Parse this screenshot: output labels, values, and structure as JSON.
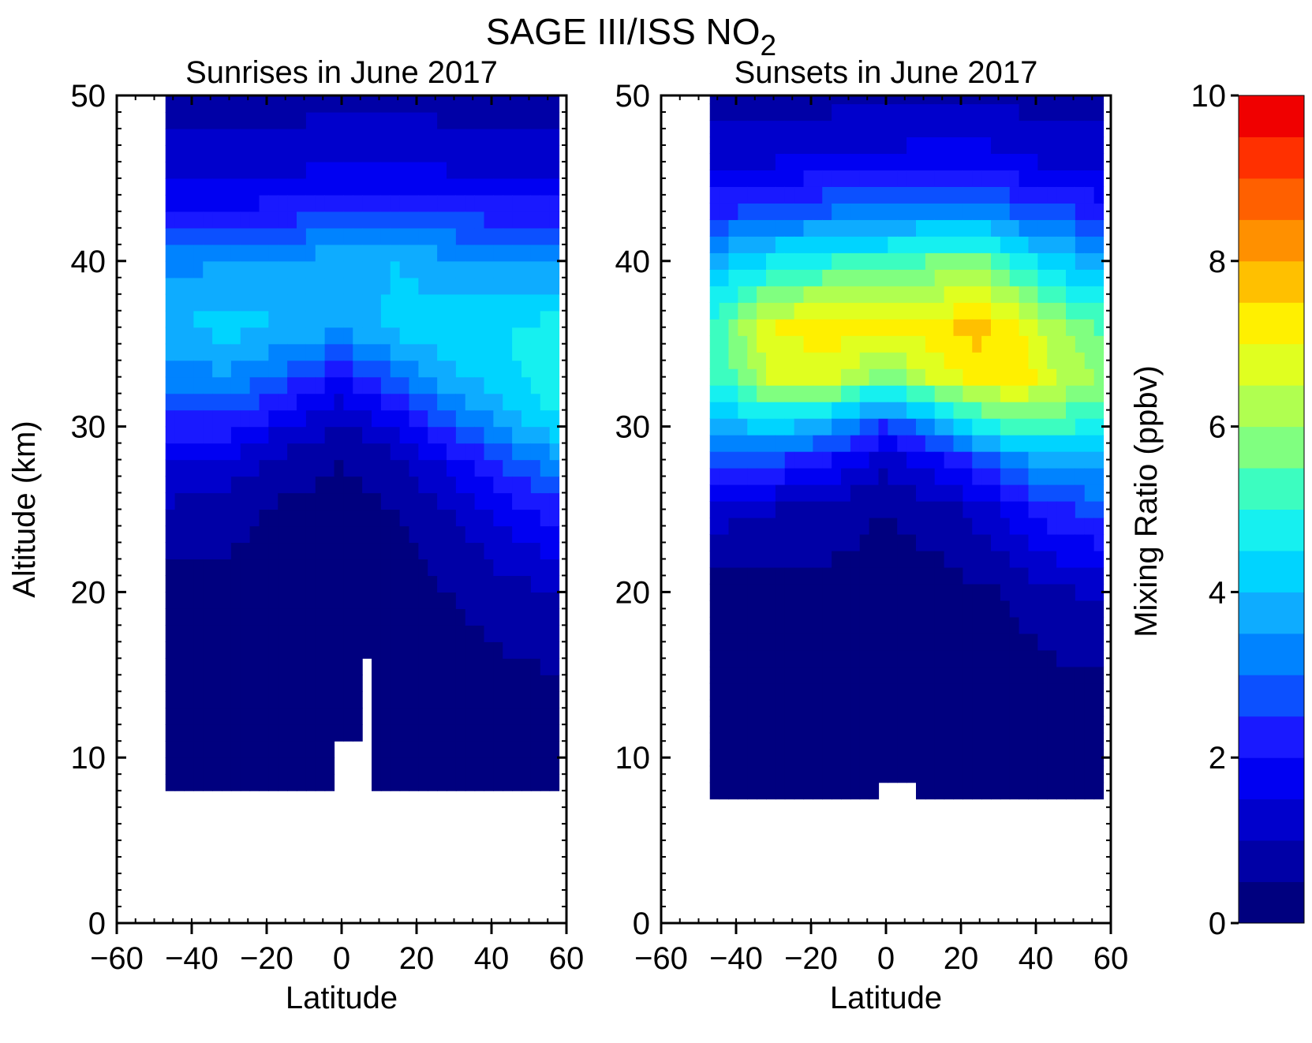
{
  "figure": {
    "title_main": "SAGE III/ISS NO",
    "title_subscript": "2"
  },
  "colorbar": {
    "label": "Mixing Ratio (ppbv)",
    "min": 0,
    "max": 10,
    "step": 0.5,
    "tick_values": [
      0,
      2,
      4,
      6,
      8,
      10
    ],
    "tick_labels": [
      "0",
      "2",
      "4",
      "6",
      "8",
      "10"
    ],
    "colors": [
      "#00007f",
      "#0000a6",
      "#0000cc",
      "#0000f2",
      "#1919ff",
      "#0c50ff",
      "#0083ff",
      "#0eacff",
      "#00d4ff",
      "#16f0f0",
      "#3cfdc0",
      "#80ff80",
      "#b0ff50",
      "#e0ff20",
      "#fff000",
      "#ffc000",
      "#ff9000",
      "#ff6000",
      "#ff3000",
      "#f00000",
      "#b00000"
    ]
  },
  "chart_data": [
    {
      "type": "heatmap",
      "title": "Sunrises in June 2017",
      "xlabel": "Latitude",
      "ylabel": "Altitude (km)",
      "xlim": [
        -60,
        60
      ],
      "ylim": [
        0,
        50
      ],
      "x_ticks": [
        -60,
        -40,
        -20,
        0,
        20,
        40,
        60
      ],
      "x_tick_labels": [
        "−60",
        "−40",
        "−20",
        "0",
        "20",
        "40",
        "60"
      ],
      "y_ticks": [
        0,
        10,
        20,
        30,
        40,
        50
      ],
      "y_tick_labels": [
        "0",
        "10",
        "20",
        "30",
        "40",
        "50"
      ],
      "colorbar_label": "Mixing Ratio (ppbv)",
      "value_range": [
        0,
        10
      ],
      "grid": false,
      "data_extent": {
        "lat_range": [
          -47,
          58
        ],
        "alt_range": [
          8,
          50
        ]
      },
      "gaps": [
        {
          "lat_range": [
            -1,
            9
          ],
          "alt_max": 11
        },
        {
          "lat_range": [
            5,
            7
          ],
          "alt_max": 16
        }
      ],
      "profiles": [
        {
          "lat": -45,
          "alt": [
            8,
            10,
            15,
            20,
            25,
            28,
            30,
            33,
            36,
            40,
            43,
            46,
            50
          ],
          "value": [
            0.2,
            0.2,
            0.2,
            0.3,
            0.9,
            1.5,
            2.3,
            3.3,
            4.0,
            3.3,
            2.0,
            1.2,
            0.8
          ]
        },
        {
          "lat": -30,
          "alt": [
            8,
            10,
            15,
            20,
            25,
            28,
            30,
            33,
            36,
            40,
            43,
            46,
            50
          ],
          "value": [
            0.2,
            0.2,
            0.2,
            0.3,
            0.7,
            1.4,
            2.3,
            3.4,
            4.2,
            3.5,
            2.1,
            1.2,
            0.8
          ]
        },
        {
          "lat": -15,
          "alt": [
            8,
            10,
            15,
            20,
            25,
            28,
            30,
            33,
            36,
            40,
            43,
            46,
            50
          ],
          "value": [
            0.2,
            0.2,
            0.2,
            0.2,
            0.4,
            0.8,
            1.5,
            2.8,
            4.0,
            3.6,
            2.2,
            1.3,
            0.8
          ]
        },
        {
          "lat": 0,
          "alt": [
            8,
            10,
            15,
            20,
            25,
            28,
            30,
            33,
            36,
            40,
            43,
            46,
            50
          ],
          "value": [
            0.2,
            0.2,
            0.2,
            0.2,
            0.3,
            0.5,
            0.9,
            2.0,
            3.6,
            3.8,
            2.5,
            1.4,
            0.8
          ]
        },
        {
          "lat": 15,
          "alt": [
            8,
            10,
            15,
            20,
            25,
            28,
            30,
            33,
            36,
            40,
            43,
            46,
            50
          ],
          "value": [
            0.2,
            0.2,
            0.2,
            0.3,
            0.5,
            0.9,
            1.6,
            3.0,
            4.2,
            4.0,
            2.6,
            1.4,
            0.8
          ]
        },
        {
          "lat": 30,
          "alt": [
            8,
            10,
            15,
            20,
            25,
            28,
            30,
            33,
            36,
            40,
            43,
            46,
            50
          ],
          "value": [
            0.2,
            0.2,
            0.3,
            0.5,
            1.0,
            1.8,
            2.8,
            3.9,
            4.4,
            3.6,
            2.4,
            1.3,
            0.8
          ]
        },
        {
          "lat": 45,
          "alt": [
            8,
            10,
            15,
            20,
            25,
            28,
            30,
            33,
            36,
            40,
            43,
            46,
            50
          ],
          "value": [
            0.2,
            0.2,
            0.4,
            0.8,
            1.8,
            2.8,
            3.7,
            4.4,
            4.5,
            3.4,
            2.2,
            1.2,
            0.8
          ]
        },
        {
          "lat": 58,
          "alt": [
            8,
            10,
            15,
            20,
            25,
            28,
            30,
            33,
            36,
            40,
            43,
            46,
            50
          ],
          "value": [
            0.3,
            0.3,
            0.5,
            1.0,
            2.3,
            3.4,
            4.4,
            5.0,
            4.8,
            3.4,
            2.2,
            1.2,
            0.8
          ]
        }
      ]
    },
    {
      "type": "heatmap",
      "title": "Sunsets in June 2017",
      "xlabel": "Latitude",
      "ylabel": "",
      "xlim": [
        -60,
        60
      ],
      "ylim": [
        0,
        50
      ],
      "x_ticks": [
        -60,
        -40,
        -20,
        0,
        20,
        40,
        60
      ],
      "x_tick_labels": [
        "−60",
        "−40",
        "−20",
        "0",
        "20",
        "40",
        "60"
      ],
      "y_ticks": [
        0,
        10,
        20,
        30,
        40,
        50
      ],
      "y_tick_labels": [
        "0",
        "10",
        "20",
        "30",
        "40",
        "50"
      ],
      "colorbar_label": "Mixing Ratio (ppbv)",
      "value_range": [
        0,
        10
      ],
      "grid": false,
      "data_extent": {
        "lat_range": [
          -47,
          58
        ],
        "alt_range": [
          7.5,
          50
        ]
      },
      "gaps": [
        {
          "lat_range": [
            -3,
            9
          ],
          "alt_max": 9
        }
      ],
      "profiles": [
        {
          "lat": -45,
          "alt": [
            8,
            10,
            15,
            20,
            25,
            28,
            30,
            33,
            36,
            40,
            43,
            46,
            50
          ],
          "value": [
            0.2,
            0.2,
            0.2,
            0.3,
            1.2,
            2.6,
            3.8,
            5.0,
            5.3,
            3.9,
            2.4,
            1.4,
            0.8
          ]
        },
        {
          "lat": -30,
          "alt": [
            8,
            10,
            15,
            20,
            25,
            28,
            30,
            33,
            36,
            40,
            43,
            46,
            50
          ],
          "value": [
            0.2,
            0.2,
            0.2,
            0.3,
            1.0,
            2.6,
            4.2,
            6.6,
            7.0,
            4.6,
            2.7,
            1.5,
            0.8
          ]
        },
        {
          "lat": -15,
          "alt": [
            8,
            10,
            15,
            20,
            25,
            28,
            30,
            33,
            36,
            40,
            43,
            46,
            50
          ],
          "value": [
            0.2,
            0.2,
            0.2,
            0.3,
            0.8,
            2.0,
            3.6,
            6.7,
            7.3,
            5.0,
            3.0,
            1.6,
            0.8
          ]
        },
        {
          "lat": 0,
          "alt": [
            8,
            10,
            15,
            20,
            25,
            28,
            30,
            33,
            36,
            40,
            43,
            46,
            50
          ],
          "value": [
            0.2,
            0.2,
            0.2,
            0.2,
            0.5,
            1.2,
            2.4,
            5.6,
            7.1,
            5.2,
            3.1,
            1.7,
            0.8
          ]
        },
        {
          "lat": 15,
          "alt": [
            8,
            10,
            15,
            20,
            25,
            28,
            30,
            33,
            36,
            40,
            43,
            46,
            50
          ],
          "value": [
            0.2,
            0.2,
            0.2,
            0.3,
            0.8,
            1.9,
            3.6,
            6.8,
            7.4,
            5.6,
            3.4,
            1.8,
            0.8
          ]
        },
        {
          "lat": 25,
          "alt": [
            8,
            10,
            15,
            20,
            25,
            28,
            30,
            33,
            36,
            40,
            43,
            46,
            50
          ],
          "value": [
            0.2,
            0.2,
            0.2,
            0.4,
            1.2,
            2.6,
            4.6,
            7.2,
            7.7,
            5.7,
            3.3,
            1.8,
            0.8
          ]
        },
        {
          "lat": 35,
          "alt": [
            8,
            10,
            15,
            20,
            25,
            28,
            30,
            33,
            36,
            40,
            43,
            46,
            50
          ],
          "value": [
            0.2,
            0.2,
            0.3,
            0.6,
            1.9,
            3.4,
            5.2,
            7.3,
            7.1,
            4.8,
            2.9,
            1.6,
            0.8
          ]
        },
        {
          "lat": 45,
          "alt": [
            8,
            10,
            15,
            20,
            25,
            28,
            30,
            33,
            36,
            40,
            43,
            46,
            50
          ],
          "value": [
            0.2,
            0.2,
            0.4,
            0.9,
            2.4,
            3.8,
            5.1,
            6.6,
            6.1,
            4.2,
            2.6,
            1.4,
            0.8
          ]
        },
        {
          "lat": 58,
          "alt": [
            8,
            10,
            15,
            20,
            25,
            28,
            30,
            33,
            36,
            40,
            43,
            46,
            50
          ],
          "value": [
            0.3,
            0.3,
            0.5,
            1.1,
            2.7,
            3.9,
            4.9,
            5.8,
            5.4,
            3.6,
            2.3,
            1.3,
            0.8
          ]
        }
      ]
    }
  ]
}
